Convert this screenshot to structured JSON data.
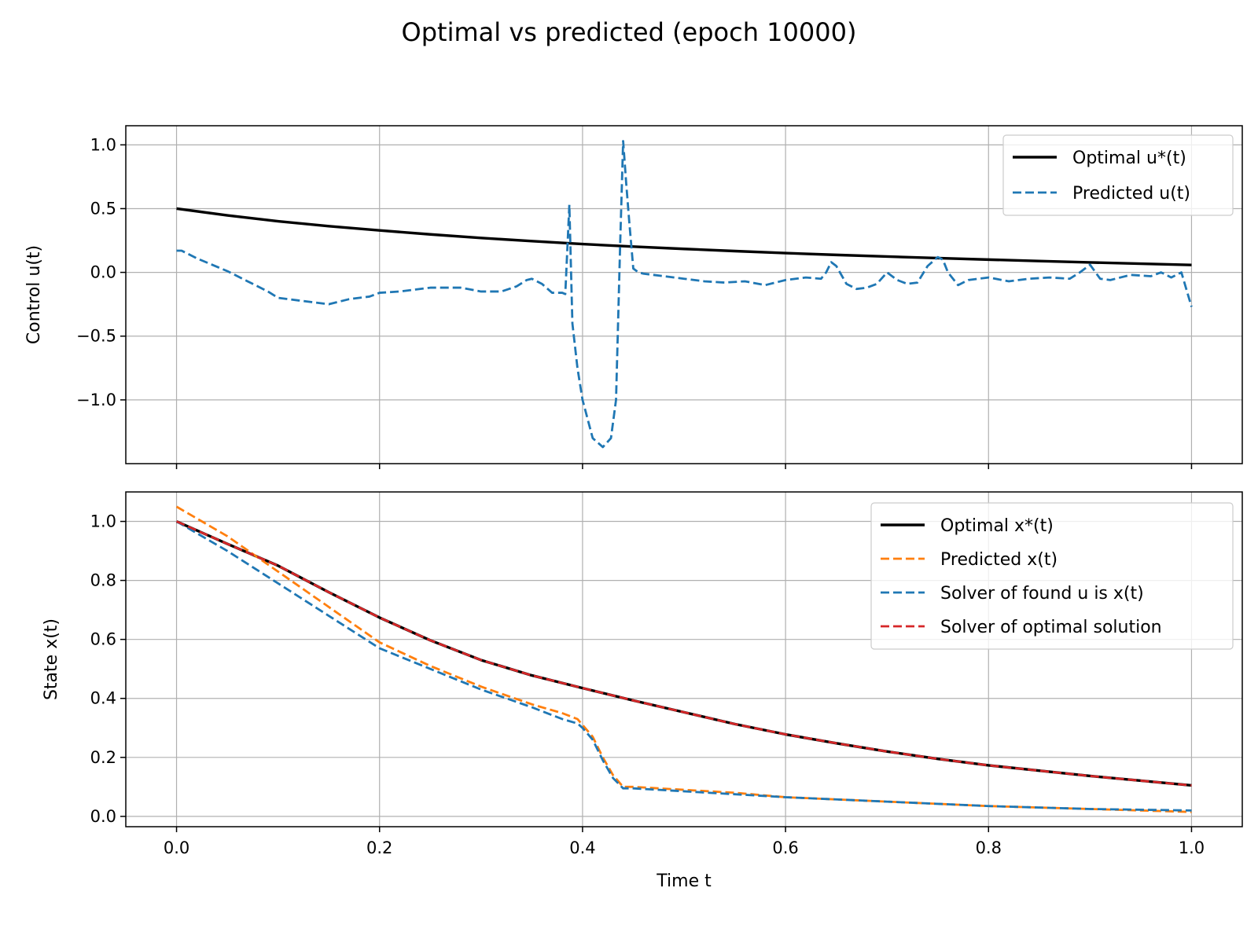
{
  "figure": {
    "title": "Optimal vs predicted (epoch 10000)"
  },
  "colors": {
    "optimal": "#000000",
    "blue": "#1f77b4",
    "orange": "#ff7f0e",
    "red": "#d62728"
  },
  "chart_data": [
    {
      "type": "line",
      "ylabel": "Control u(t)",
      "xlabel": "",
      "xlim": [
        -0.05,
        1.05
      ],
      "ylim": [
        -1.5,
        1.15
      ],
      "xticks": [
        "0.0",
        "0.2",
        "0.4",
        "0.6",
        "0.8",
        "1.0"
      ],
      "yticks": [
        "−1.0",
        "−0.5",
        "0.0",
        "0.5",
        "1.0"
      ],
      "grid": true,
      "legend_position": "upper right",
      "series": [
        {
          "name": "Optimal u*(t)",
          "legend_label": "Optimal u*(t)",
          "style": "solid",
          "color_key": "optimal",
          "x": [
            0,
            0.05,
            0.1,
            0.15,
            0.2,
            0.25,
            0.3,
            0.35,
            0.4,
            0.45,
            0.5,
            0.55,
            0.6,
            0.65,
            0.7,
            0.75,
            0.8,
            0.85,
            0.9,
            0.95,
            1.0
          ],
          "y": [
            0.5,
            0.447,
            0.401,
            0.362,
            0.329,
            0.298,
            0.27,
            0.245,
            0.222,
            0.202,
            0.184,
            0.167,
            0.151,
            0.137,
            0.124,
            0.112,
            0.1,
            0.089,
            0.078,
            0.068,
            0.058
          ]
        },
        {
          "name": "Predicted u(t)",
          "legend_label": "Predicted u(t)",
          "style": "dashed",
          "color_key": "blue",
          "x": [
            0,
            0.005,
            0.02,
            0.05,
            0.07,
            0.09,
            0.1,
            0.12,
            0.15,
            0.17,
            0.19,
            0.2,
            0.22,
            0.25,
            0.28,
            0.3,
            0.32,
            0.335,
            0.345,
            0.35,
            0.36,
            0.37,
            0.38,
            0.383,
            0.387,
            0.39,
            0.395,
            0.4,
            0.41,
            0.42,
            0.428,
            0.433,
            0.437,
            0.44,
            0.443,
            0.446,
            0.45,
            0.455,
            0.46,
            0.48,
            0.5,
            0.52,
            0.54,
            0.56,
            0.58,
            0.6,
            0.62,
            0.635,
            0.64,
            0.645,
            0.65,
            0.66,
            0.67,
            0.68,
            0.69,
            0.7,
            0.71,
            0.72,
            0.73,
            0.74,
            0.75,
            0.755,
            0.76,
            0.77,
            0.78,
            0.8,
            0.82,
            0.84,
            0.86,
            0.88,
            0.89,
            0.9,
            0.91,
            0.92,
            0.94,
            0.96,
            0.97,
            0.98,
            0.99,
            1.0
          ],
          "y": [
            0.17,
            0.17,
            0.11,
            0.01,
            -0.07,
            -0.15,
            -0.2,
            -0.22,
            -0.25,
            -0.21,
            -0.19,
            -0.16,
            -0.15,
            -0.12,
            -0.12,
            -0.15,
            -0.15,
            -0.11,
            -0.06,
            -0.05,
            -0.09,
            -0.16,
            -0.16,
            -0.17,
            0.53,
            -0.4,
            -0.75,
            -1.0,
            -1.3,
            -1.37,
            -1.3,
            -1.0,
            0.2,
            1.03,
            0.7,
            0.4,
            0.03,
            0.0,
            -0.01,
            -0.03,
            -0.05,
            -0.07,
            -0.08,
            -0.07,
            -0.1,
            -0.06,
            -0.04,
            -0.05,
            0.0,
            0.08,
            0.05,
            -0.09,
            -0.13,
            -0.12,
            -0.09,
            0.0,
            -0.06,
            -0.09,
            -0.08,
            0.05,
            0.12,
            0.1,
            0.0,
            -0.1,
            -0.06,
            -0.04,
            -0.07,
            -0.05,
            -0.04,
            -0.05,
            0.0,
            0.06,
            -0.05,
            -0.06,
            -0.02,
            -0.03,
            0.0,
            -0.04,
            0.0,
            -0.27
          ]
        }
      ]
    },
    {
      "type": "line",
      "ylabel": "State x(t)",
      "xlabel": "Time t",
      "xlim": [
        -0.05,
        1.05
      ],
      "ylim": [
        -0.035,
        1.1
      ],
      "xticks": [
        "0.0",
        "0.2",
        "0.4",
        "0.6",
        "0.8",
        "1.0"
      ],
      "yticks": [
        "0.0",
        "0.2",
        "0.4",
        "0.6",
        "0.8",
        "1.0"
      ],
      "grid": true,
      "legend_position": "upper right",
      "series": [
        {
          "name": "Optimal x*(t)",
          "legend_label": "Optimal x*(t)",
          "style": "solid",
          "color_key": "optimal",
          "x": [
            0,
            0.05,
            0.1,
            0.15,
            0.2,
            0.25,
            0.3,
            0.35,
            0.4,
            0.45,
            0.5,
            0.55,
            0.6,
            0.65,
            0.7,
            0.75,
            0.8,
            0.85,
            0.9,
            0.95,
            1.0
          ],
          "y": [
            1.0,
            0.924,
            0.85,
            0.76,
            0.674,
            0.597,
            0.53,
            0.478,
            0.435,
            0.393,
            0.353,
            0.313,
            0.278,
            0.248,
            0.22,
            0.195,
            0.173,
            0.155,
            0.137,
            0.121,
            0.105
          ]
        },
        {
          "name": "Predicted x(t)",
          "legend_label": "Predicted x(t)",
          "style": "dashed",
          "color_key": "orange",
          "x": [
            0,
            0.05,
            0.1,
            0.15,
            0.2,
            0.25,
            0.3,
            0.35,
            0.38,
            0.395,
            0.4,
            0.41,
            0.42,
            0.43,
            0.44,
            0.45,
            0.5,
            0.55,
            0.6,
            0.7,
            0.8,
            0.9,
            1.0
          ],
          "y": [
            1.05,
            0.95,
            0.83,
            0.71,
            0.59,
            0.51,
            0.44,
            0.38,
            0.35,
            0.33,
            0.31,
            0.27,
            0.2,
            0.14,
            0.1,
            0.1,
            0.09,
            0.08,
            0.065,
            0.05,
            0.035,
            0.025,
            0.015
          ]
        },
        {
          "name": "Solver of found u is x(t)",
          "legend_label": "Solver of found u is x(t)",
          "style": "dashed",
          "color_key": "blue",
          "x": [
            0,
            0.05,
            0.1,
            0.15,
            0.2,
            0.25,
            0.3,
            0.35,
            0.38,
            0.395,
            0.4,
            0.41,
            0.42,
            0.43,
            0.44,
            0.45,
            0.5,
            0.55,
            0.6,
            0.7,
            0.8,
            0.9,
            1.0
          ],
          "y": [
            1.0,
            0.9,
            0.79,
            0.68,
            0.57,
            0.5,
            0.43,
            0.37,
            0.33,
            0.315,
            0.3,
            0.26,
            0.19,
            0.13,
            0.095,
            0.095,
            0.085,
            0.075,
            0.065,
            0.05,
            0.035,
            0.025,
            0.02
          ]
        },
        {
          "name": "Solver of optimal solution",
          "legend_label": "Solver of optimal solution",
          "style": "dashed",
          "color_key": "red",
          "x": [
            0,
            0.05,
            0.1,
            0.15,
            0.2,
            0.25,
            0.3,
            0.35,
            0.4,
            0.45,
            0.5,
            0.55,
            0.6,
            0.65,
            0.7,
            0.75,
            0.8,
            0.85,
            0.9,
            0.95,
            1.0
          ],
          "y": [
            1.0,
            0.924,
            0.85,
            0.76,
            0.674,
            0.597,
            0.53,
            0.478,
            0.435,
            0.393,
            0.353,
            0.313,
            0.278,
            0.248,
            0.22,
            0.195,
            0.173,
            0.155,
            0.137,
            0.121,
            0.105
          ]
        }
      ]
    }
  ]
}
